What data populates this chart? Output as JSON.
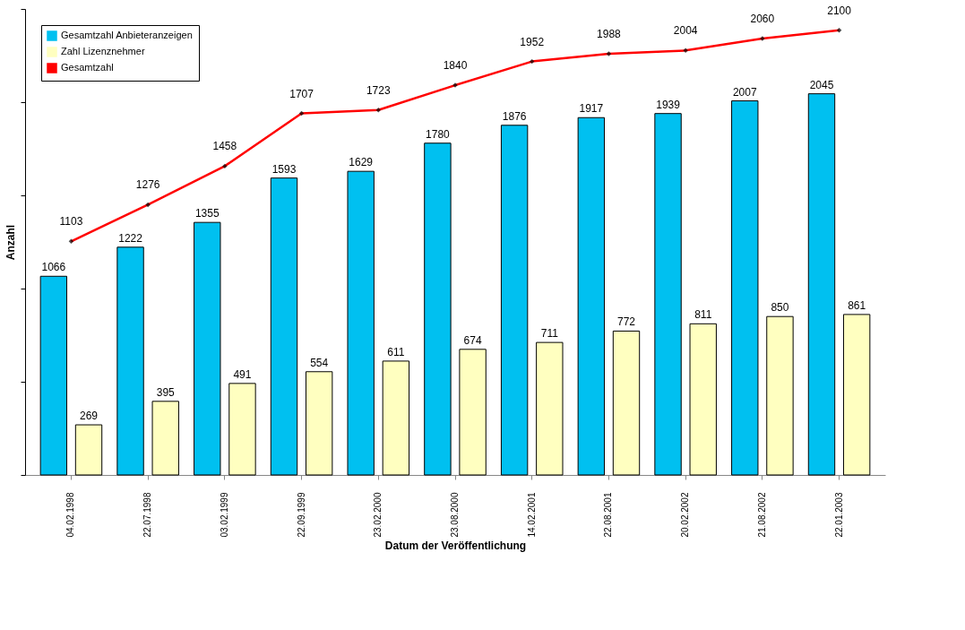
{
  "chart_data": {
    "type": "bar",
    "xlabel": "Datum der Veröffentlichung",
    "ylabel": "Anzahl",
    "categories": [
      "04.02.1998",
      "22.07.1998",
      "03.02.1999",
      "22.09.1999",
      "23.02.2000",
      "23.08.2000",
      "14.02.2001",
      "22.08.2001",
      "20.02.2002",
      "21.08.2002",
      "22.01.2003"
    ],
    "series": [
      {
        "name": "Gesamtzahl Anbieteranzeigen",
        "color": "#00c0f0",
        "values": [
          1066,
          1222,
          1355,
          1593,
          1629,
          1780,
          1876,
          1917,
          1939,
          2007,
          2045
        ]
      },
      {
        "name": "Zahl Lizenznehmer",
        "color": "#ffffc0",
        "values": [
          269,
          395,
          491,
          554,
          611,
          674,
          711,
          772,
          811,
          850,
          861
        ]
      },
      {
        "name": "Gesamtzahl",
        "type": "line",
        "axis": "y2",
        "color": "#ff0000",
        "values": [
          1103,
          1276,
          1458,
          1707,
          1723,
          1840,
          1952,
          1988,
          2004,
          2060,
          2100
        ]
      }
    ],
    "ylim": [
      0,
      2500
    ],
    "y2lim": [
      0,
      2200
    ],
    "yticks": [
      {
        "value": 0,
        "label": null
      },
      {
        "value": 500,
        "label": null
      },
      {
        "value": 1000,
        "label": null
      },
      {
        "value": 1500,
        "label": null
      },
      {
        "value": 2000,
        "label": null
      },
      {
        "value": 2500,
        "label": null
      }
    ],
    "tick_labels": "x",
    "data_labels": true,
    "legend": "top left",
    "grid": false,
    "marker": "diamond",
    "line_style": "solid"
  }
}
